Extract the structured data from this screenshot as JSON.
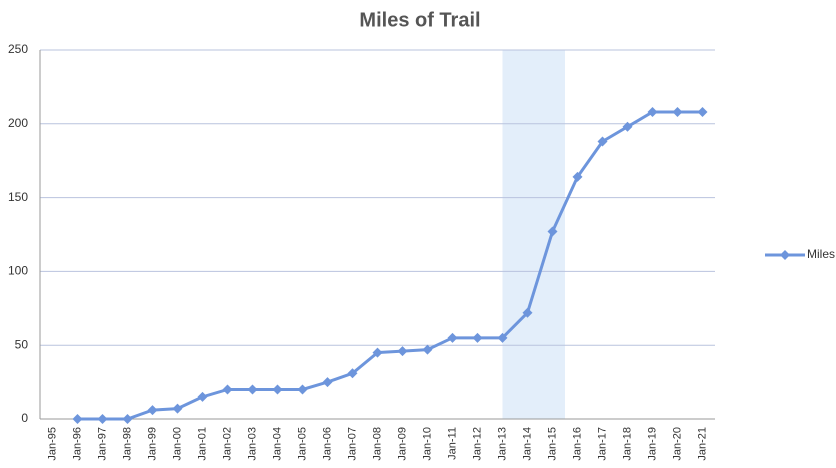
{
  "chart_data": {
    "type": "line",
    "title": "Miles of Trail",
    "categories": [
      "Jan-95",
      "Jan-96",
      "Jan-97",
      "Jan-98",
      "Jan-99",
      "Jan-00",
      "Jan-01",
      "Jan-02",
      "Jan-03",
      "Jan-04",
      "Jan-05",
      "Jan-06",
      "Jan-07",
      "Jan-08",
      "Jan-09",
      "Jan-10",
      "Jan-11",
      "Jan-12",
      "Jan-13",
      "Jan-14",
      "Jan-15",
      "Jan-16",
      "Jan-17",
      "Jan-18",
      "Jan-19",
      "Jan-20",
      "Jan-21"
    ],
    "series": [
      {
        "name": "Miles of Trail",
        "color": "#6d95dc",
        "values": [
          null,
          0,
          0,
          0,
          6,
          7,
          15,
          20,
          20,
          20,
          20,
          25,
          31,
          45,
          46,
          47,
          55,
          55,
          55,
          72,
          127,
          164,
          188,
          198,
          208,
          208,
          208
        ]
      }
    ],
    "ylim": [
      0,
      250
    ],
    "yticks": [
      0,
      50,
      100,
      150,
      200,
      250
    ],
    "grid": true,
    "legend": "right"
  }
}
